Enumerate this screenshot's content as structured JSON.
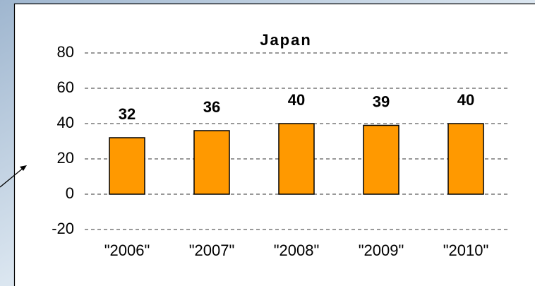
{
  "chart_data": {
    "type": "bar",
    "title": "Japan",
    "categories": [
      "\"2006\"",
      "\"2007\"",
      "\"2008\"",
      "\"2009\"",
      "\"2010\""
    ],
    "values": [
      32,
      36,
      40,
      39,
      40
    ],
    "color": "#ff9900",
    "ylim": [
      -20,
      80
    ],
    "yticks": [
      -20,
      0,
      20,
      40,
      60,
      80
    ],
    "grid": true
  }
}
